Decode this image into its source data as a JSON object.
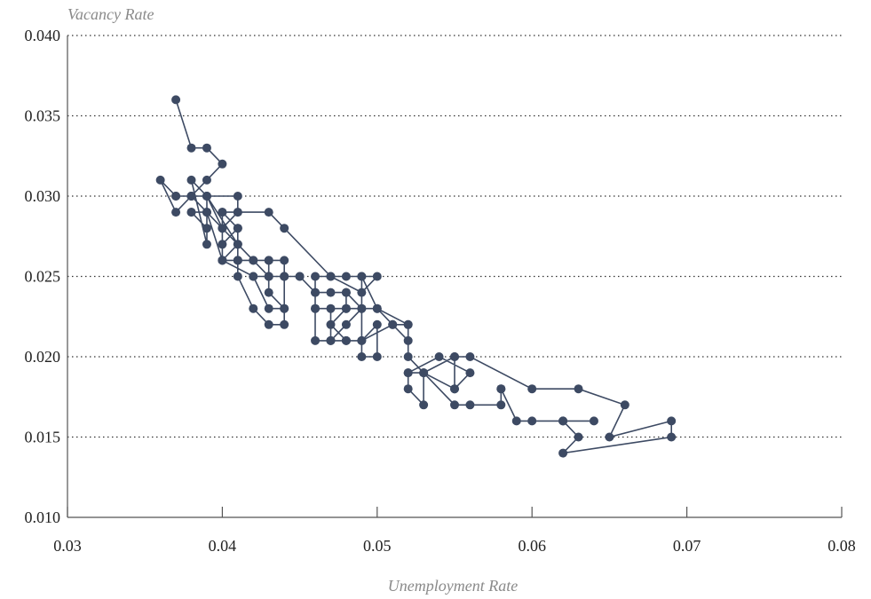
{
  "chart_data": {
    "type": "line",
    "xlabel": "Unemployment Rate",
    "ylabel": "Vacancy Rate",
    "xlim": [
      0.03,
      0.08
    ],
    "ylim": [
      0.01,
      0.04
    ],
    "x_ticks": [
      "0.03",
      "0.04",
      "0.05",
      "0.06",
      "0.07",
      "0.08"
    ],
    "y_ticks": [
      "0.010",
      "0.015",
      "0.020",
      "0.025",
      "0.030",
      "0.035",
      "0.040"
    ],
    "grid": "horizontal dotted",
    "markers": true,
    "series_color": "#3d4a63",
    "x": [
      0.037,
      0.038,
      0.039,
      0.04,
      0.039,
      0.038,
      0.037,
      0.036,
      0.037,
      0.038,
      0.039,
      0.039,
      0.038,
      0.039,
      0.041,
      0.041,
      0.04,
      0.04,
      0.041,
      0.041,
      0.04,
      0.04,
      0.041,
      0.043,
      0.044,
      0.047,
      0.048,
      0.049,
      0.05,
      0.049,
      0.047,
      0.046,
      0.046,
      0.048,
      0.05,
      0.052,
      0.051,
      0.049,
      0.048,
      0.047,
      0.048,
      0.048,
      0.046,
      0.045,
      0.044,
      0.044,
      0.043,
      0.043,
      0.044,
      0.044,
      0.043,
      0.042,
      0.041,
      0.041,
      0.042,
      0.043,
      0.043,
      0.042,
      0.043,
      0.044,
      0.044,
      0.043,
      0.043,
      0.042,
      0.041,
      0.04,
      0.039,
      0.039,
      0.038,
      0.038,
      0.039,
      0.039,
      0.038,
      0.037,
      0.038,
      0.041,
      0.039,
      0.04,
      0.04,
      0.041,
      0.041,
      0.04,
      0.042,
      0.044,
      0.045,
      0.046,
      0.047,
      0.048,
      0.049,
      0.049,
      0.048,
      0.047,
      0.047,
      0.046,
      0.046,
      0.047,
      0.048,
      0.049,
      0.05,
      0.05,
      0.049,
      0.049,
      0.05,
      0.051,
      0.052,
      0.052,
      0.052,
      0.053,
      0.055,
      0.055,
      0.056,
      0.054,
      0.052,
      0.052,
      0.053,
      0.053,
      0.055,
      0.056,
      0.058,
      0.058,
      0.058,
      0.059,
      0.06,
      0.062,
      0.064,
      0.062,
      0.063,
      0.062,
      0.069,
      0.069,
      0.065,
      0.066,
      0.063,
      0.06,
      0.056,
      0.055,
      0.055,
      0.053,
      0.052
    ],
    "y": [
      0.036,
      0.033,
      0.033,
      0.032,
      0.031,
      0.03,
      0.029,
      0.031,
      0.03,
      0.03,
      0.029,
      0.027,
      0.031,
      0.03,
      0.03,
      0.029,
      0.028,
      0.027,
      0.028,
      0.026,
      0.026,
      0.029,
      0.029,
      0.029,
      0.028,
      0.025,
      0.025,
      0.025,
      0.025,
      0.024,
      0.025,
      0.025,
      0.023,
      0.023,
      0.023,
      0.022,
      0.022,
      0.021,
      0.021,
      0.022,
      0.023,
      0.024,
      0.024,
      0.025,
      0.025,
      0.026,
      0.026,
      0.024,
      0.023,
      0.022,
      0.022,
      0.023,
      0.025,
      0.026,
      0.026,
      0.025,
      0.025,
      0.025,
      0.023,
      0.023,
      0.025,
      0.025,
      0.026,
      0.026,
      0.027,
      0.026,
      0.029,
      0.028,
      0.029,
      0.029,
      0.029,
      0.03,
      0.03,
      0.03,
      0.03,
      0.027,
      0.03,
      0.028,
      0.029,
      0.028,
      0.026,
      0.026,
      0.025,
      0.025,
      0.025,
      0.024,
      0.024,
      0.024,
      0.023,
      0.023,
      0.022,
      0.021,
      0.023,
      0.023,
      0.021,
      0.021,
      0.021,
      0.021,
      0.022,
      0.02,
      0.02,
      0.025,
      0.023,
      0.022,
      0.021,
      0.022,
      0.02,
      0.019,
      0.02,
      0.018,
      0.019,
      0.02,
      0.019,
      0.018,
      0.017,
      0.019,
      0.017,
      0.017,
      0.017,
      0.018,
      0.018,
      0.016,
      0.016,
      0.016,
      0.016,
      0.016,
      0.015,
      0.014,
      0.015,
      0.016,
      0.015,
      0.017,
      0.018,
      0.018,
      0.02,
      0.02,
      0.018,
      0.019,
      0.019
    ]
  }
}
